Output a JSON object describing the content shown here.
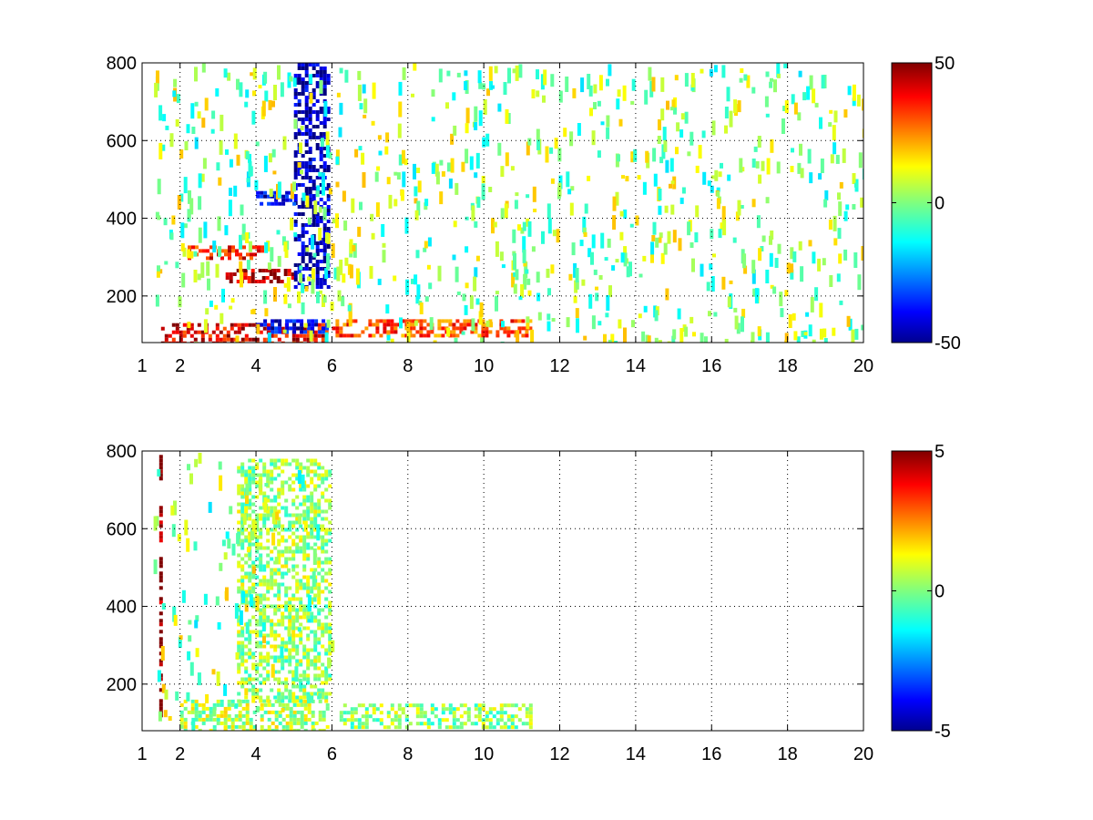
{
  "chart_data": [
    {
      "type": "heatmap",
      "title": "",
      "xlabel": "",
      "ylabel": "",
      "xlim": [
        1,
        20
      ],
      "ylim": [
        80,
        800
      ],
      "x_ticks": [
        1,
        2,
        4,
        6,
        8,
        10,
        12,
        14,
        16,
        18,
        20
      ],
      "x_tick_labels": [
        "1",
        "2",
        "4",
        "6",
        "8",
        "10",
        "12",
        "14",
        "16",
        "18",
        "20"
      ],
      "y_ticks": [
        200,
        400,
        600,
        800
      ],
      "y_tick_labels": [
        "200",
        "400",
        "600",
        "800"
      ],
      "grid": true,
      "colormap": "jet",
      "clim": [
        -50,
        50
      ],
      "colorbar_ticks": [
        -50,
        0,
        50
      ],
      "colorbar_tick_labels": [
        "-50",
        "0",
        "50"
      ],
      "features": [
        {
          "x0": 1.5,
          "x1": 5.9,
          "y0": 80,
          "y1": 130,
          "value": 40
        },
        {
          "x0": 4.0,
          "x1": 5.9,
          "y0": 105,
          "y1": 140,
          "value": -40
        },
        {
          "x0": 6.0,
          "x1": 11.2,
          "y0": 100,
          "y1": 140,
          "value": 30
        },
        {
          "x0": 2.2,
          "x1": 4.2,
          "y0": 300,
          "y1": 330,
          "value": 35
        },
        {
          "x0": 3.2,
          "x1": 5.0,
          "y0": 240,
          "y1": 270,
          "value": 45
        },
        {
          "x0": 5.0,
          "x1": 5.9,
          "y0": 220,
          "y1": 800,
          "value": -45
        },
        {
          "x0": 4.0,
          "x1": 5.0,
          "y0": 440,
          "y1": 470,
          "value": -40
        }
      ]
    },
    {
      "type": "heatmap",
      "title": "",
      "xlabel": "",
      "ylabel": "",
      "xlim": [
        1,
        20
      ],
      "ylim": [
        80,
        800
      ],
      "x_ticks": [
        1,
        2,
        4,
        6,
        8,
        10,
        12,
        14,
        16,
        18,
        20
      ],
      "x_tick_labels": [
        "1",
        "2",
        "4",
        "6",
        "8",
        "10",
        "12",
        "14",
        "16",
        "18",
        "20"
      ],
      "y_ticks": [
        200,
        400,
        600,
        800
      ],
      "y_tick_labels": [
        "200",
        "400",
        "600",
        "800"
      ],
      "grid": true,
      "colormap": "jet",
      "clim": [
        -5,
        5
      ],
      "colorbar_ticks": [
        -5,
        0,
        5
      ],
      "colorbar_tick_labels": [
        "-5",
        "0",
        "5"
      ],
      "features": [
        {
          "x0": 2.0,
          "x1": 5.9,
          "y0": 80,
          "y1": 160,
          "value": 0.5
        },
        {
          "x0": 3.5,
          "x1": 5.9,
          "y0": 160,
          "y1": 780,
          "value": 0.3
        },
        {
          "x0": 6.2,
          "x1": 11.2,
          "y0": 90,
          "y1": 150,
          "value": 0.2
        },
        {
          "x0": 1.45,
          "x1": 1.5,
          "y0": 80,
          "y1": 790,
          "value": 5
        }
      ]
    }
  ]
}
